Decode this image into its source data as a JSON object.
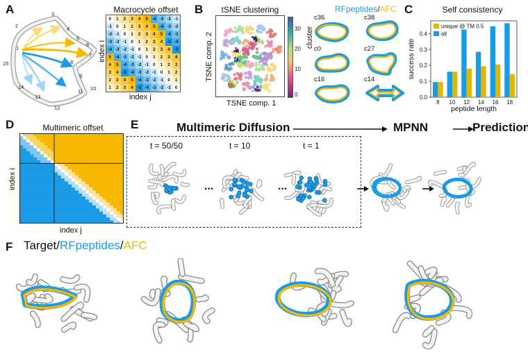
{
  "panels": {
    "A": "A",
    "B": "B",
    "C": "C",
    "D": "D",
    "E": "E",
    "F": "F"
  },
  "colors": {
    "blue": "#1a9be6",
    "yellow": "#f6b900",
    "gold": "#e0b800"
  },
  "ring_numbers": [
    "1",
    "2",
    "3",
    "4",
    "5",
    "6",
    "7",
    "8",
    "9",
    "10",
    "11",
    "12",
    "13",
    "14",
    "15"
  ],
  "macro": {
    "title": "Macrocycle offset",
    "xlabel": "index j",
    "ylabel": "index i",
    "matrix": [
      [
        0,
        1,
        2,
        3,
        4,
        5,
        -4,
        -3,
        -2,
        -1
      ],
      [
        -1,
        0,
        1,
        2,
        3,
        4,
        5,
        -4,
        -3,
        -2
      ],
      [
        -2,
        -1,
        0,
        1,
        2,
        3,
        4,
        5,
        -4,
        -3
      ],
      [
        -3,
        -2,
        -1,
        0,
        1,
        2,
        3,
        4,
        -5,
        -4
      ],
      [
        -4,
        -3,
        -2,
        -1,
        0,
        1,
        2,
        3,
        4,
        -5
      ],
      [
        5,
        -4,
        -3,
        -2,
        -1,
        0,
        1,
        2,
        3,
        4
      ],
      [
        4,
        5,
        -4,
        -3,
        -2,
        -1,
        0,
        1,
        2,
        3
      ],
      [
        3,
        4,
        -5,
        -4,
        -3,
        -2,
        -1,
        0,
        1,
        2
      ],
      [
        2,
        3,
        4,
        5,
        -4,
        -3,
        -2,
        -1,
        0,
        1
      ],
      [
        1,
        2,
        3,
        4,
        -5,
        -4,
        -3,
        -2,
        -1,
        0
      ]
    ]
  },
  "tsne": {
    "title": "tSNE clustering",
    "xlabel": "TSNE comp. 1",
    "ylabel": "TSNE comp. 2",
    "colorbar_label": "cluster",
    "colorbar_ticks": [
      "30",
      "20",
      "10",
      "0"
    ],
    "cluster_labels": [
      "c36",
      "c38",
      "c0",
      "c27",
      "c16",
      "c14"
    ]
  },
  "structures": {
    "header_rf": "RFpeptides",
    "header_sep": "/",
    "header_afc": "AFC",
    "labels": [
      "c36",
      "c38",
      "c0",
      "c27",
      "c16",
      "c14"
    ]
  },
  "chart_data": {
    "type": "bar",
    "title": "Self consistency",
    "xlabel": "peptide length",
    "ylabel": "success rate",
    "categories": [
      "8",
      "10",
      "12",
      "14",
      "16",
      "18"
    ],
    "series": [
      {
        "name": "unique @ TM 0.5",
        "color": "#e0b800",
        "values": [
          0.095,
          0.16,
          0.18,
          0.195,
          0.205,
          0.145
        ]
      },
      {
        "name": "all",
        "color": "#1a9be6",
        "values": [
          0.095,
          0.16,
          0.425,
          0.285,
          0.445,
          0.465
        ]
      }
    ],
    "ylim": [
      0,
      0.48
    ],
    "yticks": [
      "0.0",
      "0.1",
      "0.2",
      "0.3",
      "0.4"
    ],
    "legend_position": "top-left"
  },
  "multimeric_offset": {
    "title": "Multimeric offset",
    "xlabel": "index j",
    "ylabel": "index i"
  },
  "diffusion": {
    "title": "Multimeric Diffusion",
    "mpnn": "MPNN",
    "prediction": "Prediction",
    "steps": [
      "t = 50/50",
      "t = 10",
      "t = 1"
    ],
    "ellipsis": "..."
  },
  "target": {
    "prefix": "Target",
    "sep": "/",
    "rf": "RFpeptides",
    "sep2": "/",
    "afc": "AFC"
  }
}
